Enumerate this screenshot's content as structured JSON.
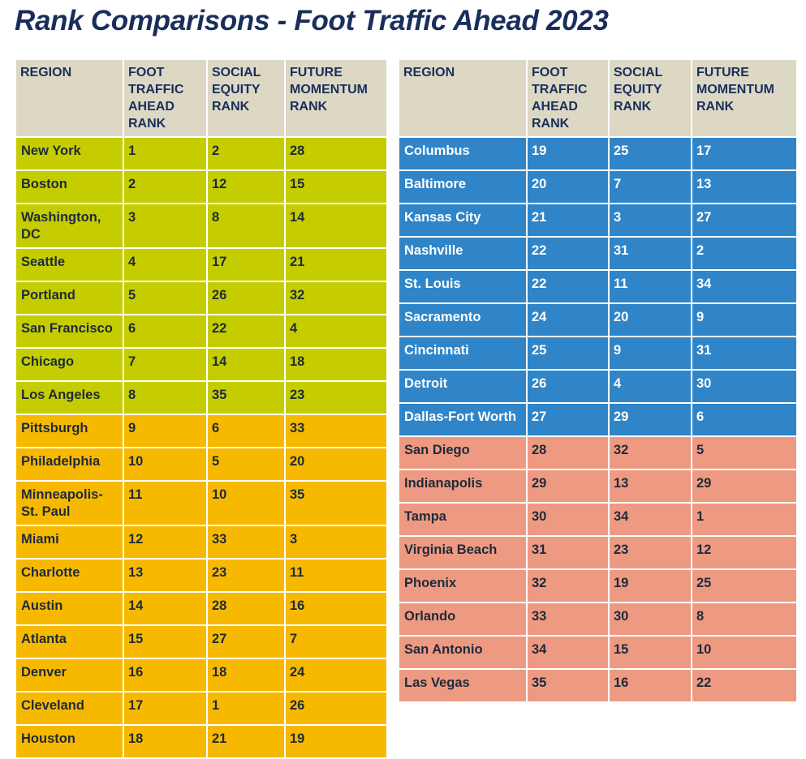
{
  "title": "Rank Comparisons - Foot Traffic Ahead 2023",
  "colors": {
    "header_bg": "#dcd8c4",
    "title_text": "#1a2e5c",
    "group_green": "#c5cd00",
    "group_yellow": "#f7b900",
    "group_blue": "#2f85c8",
    "group_salmon": "#ee9a83"
  },
  "headers": [
    "REGION",
    "FOOT TRAFFIC AHEAD RANK",
    "SOCIAL EQUITY RANK",
    "FUTURE MOMENTUM RANK"
  ],
  "left_table": [
    {
      "group": "green",
      "region": "New York",
      "foot": "1",
      "social": "2",
      "future": "28"
    },
    {
      "group": "green",
      "region": "Boston",
      "foot": "2",
      "social": "12",
      "future": "15"
    },
    {
      "group": "green",
      "region": "Washington, DC",
      "foot": "3",
      "social": "8",
      "future": "14"
    },
    {
      "group": "green",
      "region": "Seattle",
      "foot": "4",
      "social": "17",
      "future": "21"
    },
    {
      "group": "green",
      "region": "Portland",
      "foot": "5",
      "social": "26",
      "future": "32"
    },
    {
      "group": "green",
      "region": "San Francisco",
      "foot": "6",
      "social": "22",
      "future": "4"
    },
    {
      "group": "green",
      "region": "Chicago",
      "foot": "7",
      "social": "14",
      "future": "18"
    },
    {
      "group": "green",
      "region": "Los Angeles",
      "foot": "8",
      "social": "35",
      "future": "23"
    },
    {
      "group": "yellow",
      "region": "Pittsburgh",
      "foot": "9",
      "social": "6",
      "future": "33"
    },
    {
      "group": "yellow",
      "region": "Philadelphia",
      "foot": "10",
      "social": "5",
      "future": "20"
    },
    {
      "group": "yellow",
      "region": "Minneapolis-St. Paul",
      "foot": "11",
      "social": "10",
      "future": "35"
    },
    {
      "group": "yellow",
      "region": "Miami",
      "foot": "12",
      "social": "33",
      "future": "3"
    },
    {
      "group": "yellow",
      "region": "Charlotte",
      "foot": "13",
      "social": "23",
      "future": "11"
    },
    {
      "group": "yellow",
      "region": "Austin",
      "foot": "14",
      "social": "28",
      "future": "16"
    },
    {
      "group": "yellow",
      "region": "Atlanta",
      "foot": "15",
      "social": "27",
      "future": "7"
    },
    {
      "group": "yellow",
      "region": "Denver",
      "foot": "16",
      "social": "18",
      "future": "24"
    },
    {
      "group": "yellow",
      "region": "Cleveland",
      "foot": "17",
      "social": "1",
      "future": "26"
    },
    {
      "group": "yellow",
      "region": "Houston",
      "foot": "18",
      "social": "21",
      "future": "19"
    }
  ],
  "right_table": [
    {
      "group": "blue",
      "region": "Columbus",
      "foot": "19",
      "social": "25",
      "future": "17"
    },
    {
      "group": "blue",
      "region": "Baltimore",
      "foot": "20",
      "social": "7",
      "future": "13"
    },
    {
      "group": "blue",
      "region": "Kansas City",
      "foot": "21",
      "social": "3",
      "future": "27"
    },
    {
      "group": "blue",
      "region": "Nashville",
      "foot": "22",
      "social": "31",
      "future": "2"
    },
    {
      "group": "blue",
      "region": "St. Louis",
      "foot": "22",
      "social": "11",
      "future": "34"
    },
    {
      "group": "blue",
      "region": "Sacramento",
      "foot": "24",
      "social": "20",
      "future": "9"
    },
    {
      "group": "blue",
      "region": "Cincinnati",
      "foot": "25",
      "social": "9",
      "future": "31"
    },
    {
      "group": "blue",
      "region": "Detroit",
      "foot": "26",
      "social": "4",
      "future": "30"
    },
    {
      "group": "blue",
      "region": "Dallas-Fort Worth",
      "foot": "27",
      "social": "29",
      "future": "6"
    },
    {
      "group": "salmon",
      "region": "San Diego",
      "foot": "28",
      "social": "32",
      "future": "5"
    },
    {
      "group": "salmon",
      "region": "Indianapolis",
      "foot": "29",
      "social": "13",
      "future": "29"
    },
    {
      "group": "salmon",
      "region": "Tampa",
      "foot": "30",
      "social": "34",
      "future": "1"
    },
    {
      "group": "salmon",
      "region": "Virginia Beach",
      "foot": "31",
      "social": "23",
      "future": "12"
    },
    {
      "group": "salmon",
      "region": "Phoenix",
      "foot": "32",
      "social": "19",
      "future": "25"
    },
    {
      "group": "salmon",
      "region": "Orlando",
      "foot": "33",
      "social": "30",
      "future": "8"
    },
    {
      "group": "salmon",
      "region": "San Antonio",
      "foot": "34",
      "social": "15",
      "future": "10"
    },
    {
      "group": "salmon",
      "region": "Las Vegas",
      "foot": "35",
      "social": "16",
      "future": "22"
    }
  ]
}
